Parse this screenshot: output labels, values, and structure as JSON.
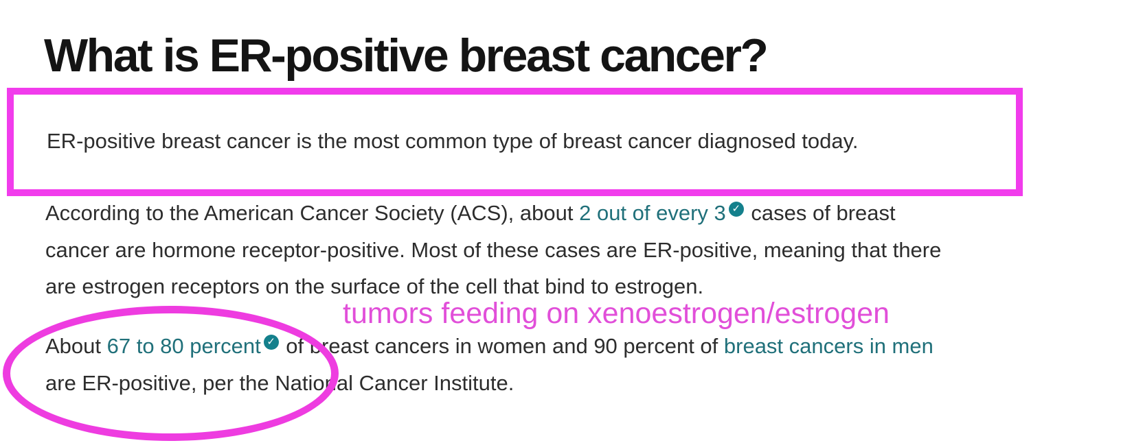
{
  "page": {
    "heading": "What is ER-positive breast cancer?"
  },
  "colors": {
    "annotation_magenta_rect": "#f13cec",
    "annotation_magenta_ellipse": "#ee3ce0",
    "annotation_magenta_text": "#e14fd9",
    "link_teal": "#20707a",
    "badge_teal": "#14808c",
    "body_text": "#2d2d2d",
    "heading_text": "#141414"
  },
  "icons": {
    "check": "✓"
  },
  "lead_paragraph": {
    "text": "ER-positive breast cancer is the most common type of breast cancer diagnosed today."
  },
  "paragraphs": {
    "acs": {
      "segments": [
        {
          "type": "text",
          "text": "According to the American Cancer Society (ACS), about "
        },
        {
          "type": "link",
          "text": "2 out of every 3"
        },
        {
          "type": "badge"
        },
        {
          "type": "text",
          "text": " cases of breast"
        },
        {
          "type": "br"
        },
        {
          "type": "text",
          "text": "cancer are hormone receptor-positive. Most of these cases are ER-positive, meaning that there"
        },
        {
          "type": "br"
        },
        {
          "type": "text",
          "text": "are estrogen receptors on the surface of the cell that bind to estrogen."
        }
      ]
    },
    "nci": {
      "segments": [
        {
          "type": "text",
          "text": "About "
        },
        {
          "type": "link",
          "text": "67 to 80 percent"
        },
        {
          "type": "badge"
        },
        {
          "type": "text",
          "text": " of breast cancers in women and 90 percent of "
        },
        {
          "type": "link",
          "text": "breast cancers in men"
        },
        {
          "type": "br"
        },
        {
          "type": "text",
          "text": "are ER-positive, per the National Cancer Institute."
        }
      ]
    }
  },
  "annotations": {
    "note_text": "tumors feeding on xenoestrogen/estrogen"
  }
}
